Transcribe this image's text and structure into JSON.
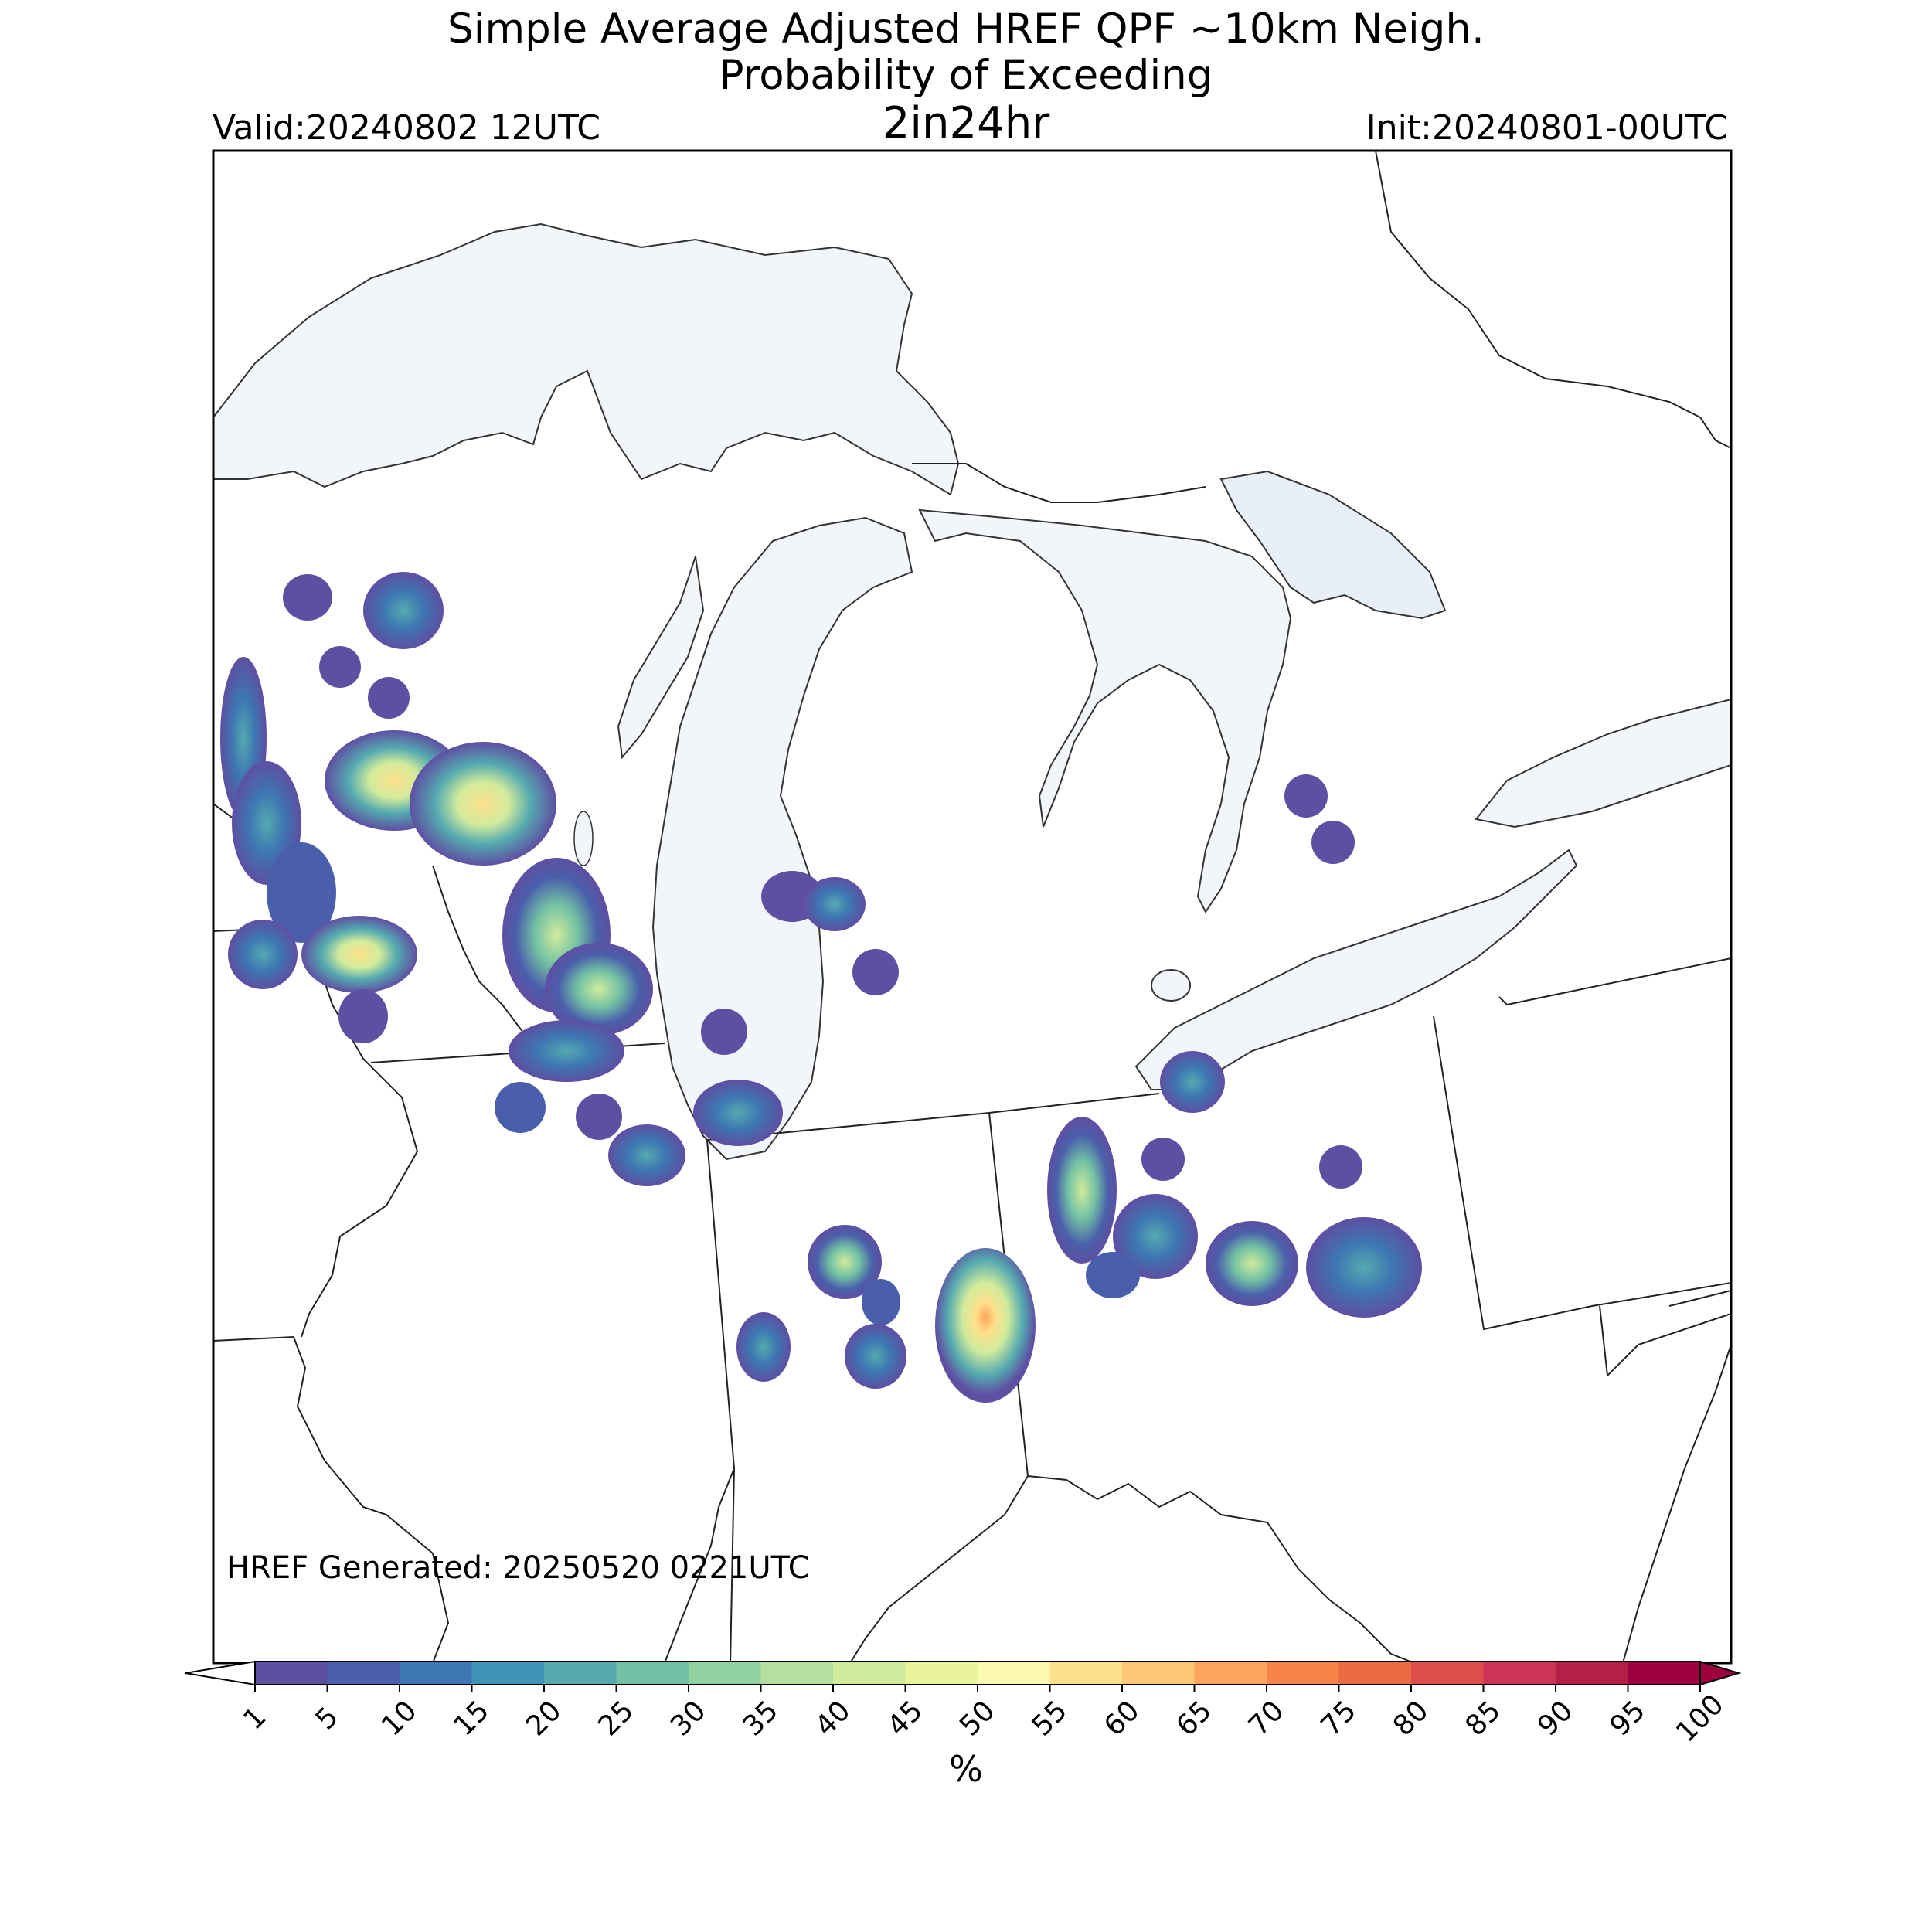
{
  "header": {
    "title_line1": "Simple Average Adjusted HREF QPF ~10km Neigh.",
    "title_line2": "Probability of Exceeding",
    "title_line3": "2in24hr",
    "valid": "Valid:20240802 12UTC",
    "init": "Init:20240801-00UTC"
  },
  "map": {
    "region": "Great Lakes / Upper Midwest",
    "lake_color": "#f2f5fa",
    "land_color": "#ffffff",
    "border_color": "#222222"
  },
  "footer": {
    "generated": "HREF Generated: 20250520 0221UTC"
  },
  "colorbar": {
    "unit": "%",
    "ticks": [
      "1",
      "5",
      "10",
      "15",
      "20",
      "25",
      "30",
      "35",
      "40",
      "45",
      "50",
      "55",
      "60",
      "65",
      "70",
      "75",
      "80",
      "85",
      "90",
      "95",
      "100"
    ],
    "colors": [
      "#5e4fa2",
      "#4a5fab",
      "#3d76b2",
      "#3f93b6",
      "#55aab0",
      "#72c1a4",
      "#91d09f",
      "#b4dfa1",
      "#d1eb9c",
      "#eaf59b",
      "#fbf8b0",
      "#fee08b",
      "#fdc775",
      "#fca35c",
      "#f68348",
      "#ea6a43",
      "#dc4d4b",
      "#cc3455",
      "#b41f48",
      "#9e0142"
    ],
    "extend": "both"
  }
}
